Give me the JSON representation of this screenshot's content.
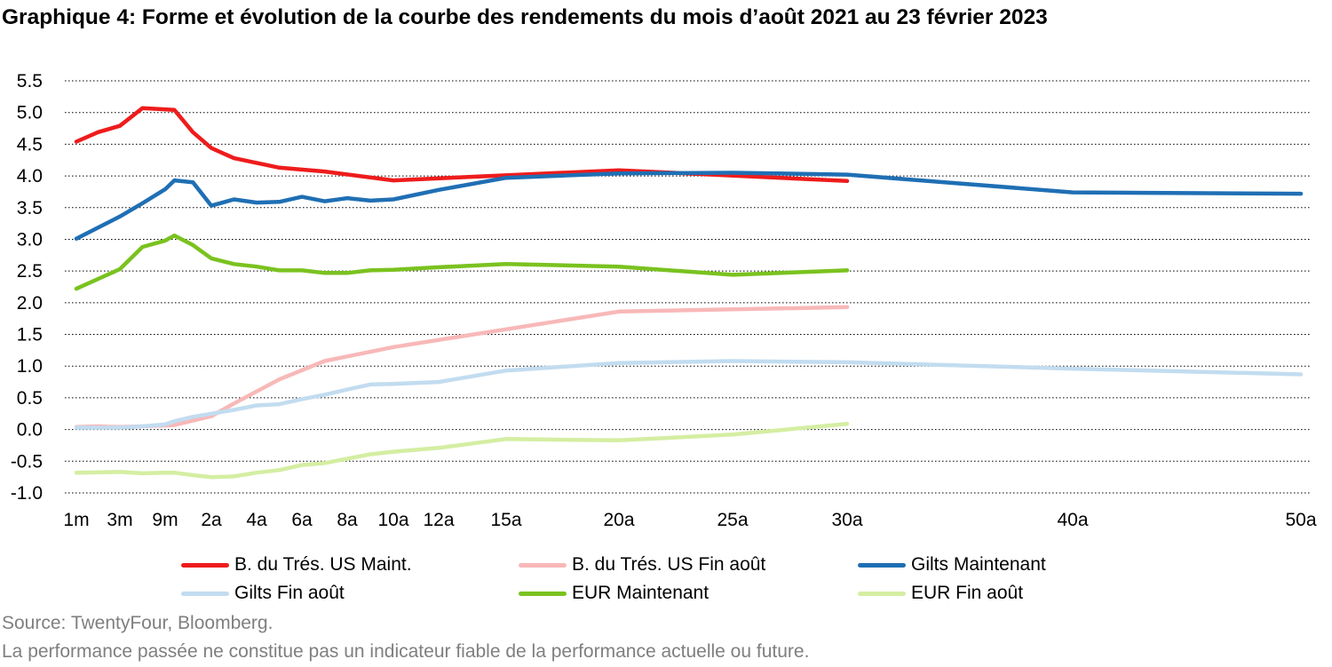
{
  "title": "Graphique 4: Forme et évolution de la courbe des rendements du mois d’août 2021 au 23 février 2023",
  "source": "Source: TwentyFour, Bloomberg.",
  "disclaimer": "La performance passée ne constitue pas un indicateur fiable de la performance actuelle ou future.",
  "chart_data": {
    "type": "line",
    "title": "Graphique 4: Forme et évolution de la courbe des rendements du mois d’août 2021 au 23 février 2023",
    "xlabel": "",
    "ylabel": "",
    "ylim": [
      -1.0,
      5.5
    ],
    "yticks": [
      "5.5",
      "5.0",
      "4.5",
      "4.0",
      "3.5",
      "3.0",
      "2.5",
      "2.0",
      "1.5",
      "1.0",
      "0.5",
      "0.0",
      "-0.5",
      "-1.0"
    ],
    "x_unit": "maturity in years",
    "xtick_labels": [
      {
        "x": 0.0833,
        "label": "1m"
      },
      {
        "x": 0.25,
        "label": "3m"
      },
      {
        "x": 0.75,
        "label": "9m"
      },
      {
        "x": 2,
        "label": "2a"
      },
      {
        "x": 4,
        "label": "4a"
      },
      {
        "x": 6,
        "label": "6a"
      },
      {
        "x": 8,
        "label": "8a"
      },
      {
        "x": 10,
        "label": "10a"
      },
      {
        "x": 12,
        "label": "12a"
      },
      {
        "x": 15,
        "label": "15a"
      },
      {
        "x": 20,
        "label": "20a"
      },
      {
        "x": 25,
        "label": "25a"
      },
      {
        "x": 30,
        "label": "30a"
      },
      {
        "x": 40,
        "label": "40a"
      },
      {
        "x": 50,
        "label": "50a"
      }
    ],
    "grid": "horizontal dotted",
    "legend_position": "bottom",
    "series": [
      {
        "name": "B. du Trés. US Maint.",
        "color": "#ee1c1c",
        "x": [
          0.0833,
          0.1667,
          0.25,
          0.5,
          1,
          1.5,
          2,
          3,
          5,
          7,
          10,
          20,
          30
        ],
        "y": [
          4.54,
          4.69,
          4.79,
          5.07,
          5.04,
          4.69,
          4.44,
          4.28,
          4.13,
          4.07,
          3.93,
          4.09,
          3.92
        ]
      },
      {
        "name": "B. du Trés. US Fin août",
        "color": "#f8b8b8",
        "x": [
          0.0833,
          0.1667,
          0.25,
          0.5,
          1,
          1.5,
          2,
          3,
          5,
          7,
          10,
          20,
          30
        ],
        "y": [
          0.04,
          0.05,
          0.04,
          0.05,
          0.07,
          0.14,
          0.21,
          0.41,
          0.79,
          1.08,
          1.3,
          1.86,
          1.93
        ]
      },
      {
        "name": "Gilts Maintenant",
        "color": "#1f6fb4",
        "x": [
          0.0833,
          0.25,
          0.5,
          0.75,
          1,
          1.5,
          2,
          3,
          4,
          5,
          6,
          7,
          8,
          9,
          10,
          12,
          15,
          20,
          25,
          30,
          40,
          50
        ],
        "y": [
          3.01,
          3.36,
          3.57,
          3.79,
          3.93,
          3.9,
          3.53,
          3.63,
          3.58,
          3.59,
          3.67,
          3.6,
          3.65,
          3.61,
          3.63,
          3.78,
          3.97,
          4.04,
          4.05,
          4.02,
          3.74,
          3.72
        ]
      },
      {
        "name": "Gilts Fin août",
        "color": "#c2dcf0",
        "x": [
          0.0833,
          0.25,
          0.5,
          0.75,
          1,
          1.5,
          2,
          3,
          4,
          5,
          6,
          7,
          8,
          9,
          10,
          12,
          15,
          20,
          25,
          30,
          40,
          50
        ],
        "y": [
          0.03,
          0.03,
          0.05,
          0.08,
          0.13,
          0.2,
          0.25,
          0.31,
          0.38,
          0.4,
          0.48,
          0.55,
          0.63,
          0.71,
          0.72,
          0.75,
          0.93,
          1.05,
          1.08,
          1.06,
          0.96,
          0.87
        ]
      },
      {
        "name": "EUR Maintenant",
        "color": "#7ac21f",
        "x": [
          0.0833,
          0.25,
          0.5,
          0.75,
          1,
          1.5,
          2,
          3,
          4,
          5,
          6,
          7,
          8,
          9,
          10,
          12,
          15,
          20,
          25,
          30
        ],
        "y": [
          2.22,
          2.53,
          2.88,
          2.98,
          3.06,
          2.91,
          2.7,
          2.61,
          2.57,
          2.51,
          2.51,
          2.47,
          2.47,
          2.51,
          2.52,
          2.56,
          2.61,
          2.57,
          2.44,
          2.51
        ]
      },
      {
        "name": "EUR Fin août",
        "color": "#d4eea2",
        "x": [
          0.0833,
          0.25,
          0.5,
          0.75,
          1,
          1.5,
          2,
          3,
          4,
          5,
          6,
          7,
          8,
          9,
          10,
          12,
          15,
          20,
          25,
          30
        ],
        "y": [
          -0.68,
          -0.67,
          -0.69,
          -0.68,
          -0.68,
          -0.72,
          -0.75,
          -0.74,
          -0.68,
          -0.64,
          -0.56,
          -0.53,
          -0.46,
          -0.39,
          -0.35,
          -0.29,
          -0.15,
          -0.17,
          -0.08,
          0.09
        ]
      }
    ]
  }
}
